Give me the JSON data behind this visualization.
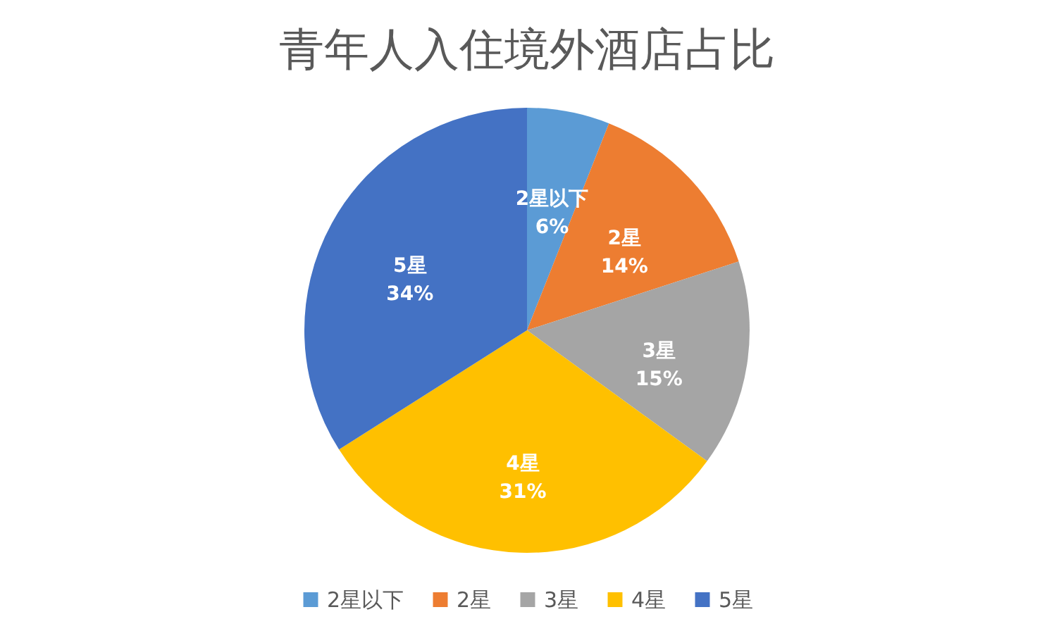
{
  "chart_data": {
    "type": "pie",
    "title": "青年人入住境外酒店占比",
    "categories": [
      "2星以下",
      "2星",
      "3星",
      "4星",
      "5星"
    ],
    "values": [
      6,
      14,
      15,
      31,
      34
    ],
    "value_labels": [
      "6%",
      "14%",
      "15%",
      "31%",
      "34%"
    ],
    "colors": [
      "#5b9bd5",
      "#ed7d31",
      "#a5a5a5",
      "#ffc000",
      "#4472c4"
    ],
    "legend": "bottom"
  }
}
